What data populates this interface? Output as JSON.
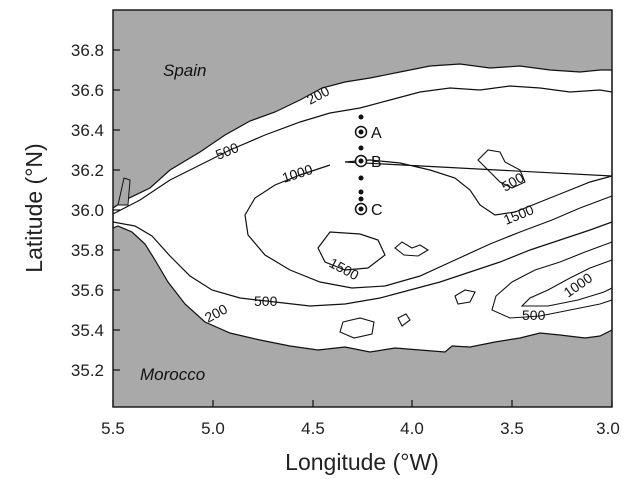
{
  "axes": {
    "xlabel": "Longitude (°W)",
    "ylabel": "Latitude (°N)",
    "x_ticks": [
      "5.5",
      "5.0",
      "4.5",
      "4.0",
      "3.5",
      "3.0"
    ],
    "y_ticks": [
      "36.8",
      "36.6",
      "36.4",
      "36.2",
      "36.0",
      "35.8",
      "35.6",
      "35.4",
      "35.2"
    ]
  },
  "regions": {
    "north": "Spain",
    "south": "Morocco"
  },
  "contours": {
    "labels": [
      "200",
      "500",
      "1000",
      "500",
      "1500",
      "1500",
      "200",
      "500",
      "500",
      "1000"
    ]
  },
  "stations": [
    "A",
    "B",
    "C"
  ],
  "colors": {
    "land": "#a9a9a9",
    "sea": "#ffffff",
    "contour": "#111111"
  }
}
